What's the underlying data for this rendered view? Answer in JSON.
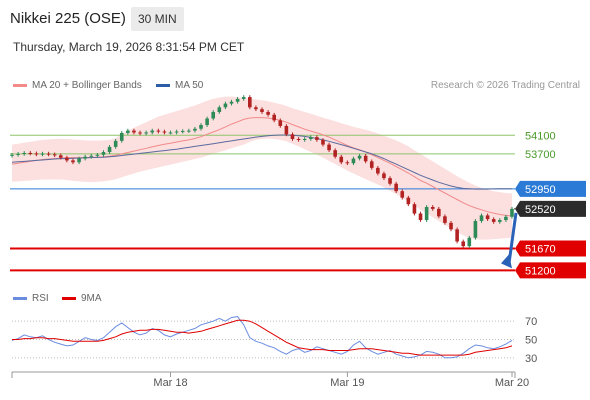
{
  "header": {
    "instrument": "Nikkei 225 (OSE)",
    "timeframe": "30 MIN",
    "timestamp": "Thursday, March 19, 2026 8:31:54 PM CET"
  },
  "legend_top": [
    {
      "label": "MA 20 + Bollinger Bands",
      "color": "#f28a8a"
    },
    {
      "label": "MA 50",
      "color": "#2c5ea8"
    }
  ],
  "legend_rsi": [
    {
      "label": "RSI",
      "color": "#6a8de0"
    },
    {
      "label": "9MA",
      "color": "#e00000"
    }
  ],
  "copyright": "Research © 2026 Trading Central",
  "colors": {
    "up": "#2e8b57",
    "down": "#b22222",
    "resistance": "#8dc56b",
    "pivot": "#2a7ad6",
    "support": "#e00000",
    "bb_fill": "#fbd9d9",
    "ma20": "#f28a8a",
    "ma50": "#5b6a9e",
    "rsi": "#6a8de0",
    "rsi_ma": "#e00000"
  },
  "chart_data": [
    {
      "type": "candlestick",
      "title": "Nikkei 225 (OSE)",
      "timeframe": "30 MIN",
      "ylim": [
        50950,
        54900
      ],
      "x_ticks": [
        {
          "label": "Mar 18",
          "index": 26
        },
        {
          "label": "Mar 19",
          "index": 55
        },
        {
          "label": "Mar 20",
          "index": 82
        }
      ],
      "levels": [
        {
          "value": 54100,
          "label": "54100",
          "kind": "resistance"
        },
        {
          "value": 53700,
          "label": "53700",
          "kind": "resistance"
        },
        {
          "value": 52950,
          "label": "52950",
          "kind": "pivot"
        },
        {
          "value": 52520,
          "label": "52520",
          "kind": "last"
        },
        {
          "value": 51670,
          "label": "51670",
          "kind": "support"
        },
        {
          "value": 51200,
          "label": "51200",
          "kind": "support"
        }
      ],
      "forecast_arrow": {
        "from_value": 52520,
        "to_value": 51200
      },
      "close": [
        53680,
        53700,
        53720,
        53710,
        53690,
        53705,
        53690,
        53670,
        53620,
        53560,
        53520,
        53600,
        53640,
        53660,
        53680,
        53740,
        53850,
        53980,
        54150,
        54200,
        54160,
        54140,
        54160,
        54200,
        54180,
        54160,
        54160,
        54180,
        54190,
        54200,
        54240,
        54320,
        54460,
        54600,
        54700,
        54780,
        54820,
        54880,
        54920,
        54700,
        54660,
        54600,
        54540,
        54420,
        54300,
        54120,
        54020,
        54000,
        54020,
        54060,
        54000,
        53900,
        53780,
        53640,
        53520,
        53500,
        53600,
        53660,
        53540,
        53400,
        53280,
        53180,
        53060,
        52900,
        52760,
        52620,
        52420,
        52280,
        52560,
        52520,
        52360,
        52220,
        52080,
        51820,
        51720,
        51900,
        52260,
        52380,
        52300,
        52240,
        52280,
        52350,
        52520
      ],
      "series": [
        {
          "name": "MA 20",
          "values": [
            53480,
            53500,
            53520,
            53540,
            53560,
            53580,
            53590,
            53600,
            53610,
            53620,
            53620,
            53620,
            53620,
            53625,
            53630,
            53640,
            53650,
            53670,
            53700,
            53730,
            53760,
            53790,
            53820,
            53850,
            53880,
            53905,
            53930,
            53955,
            53980,
            54000,
            54030,
            54070,
            54120,
            54170,
            54220,
            54280,
            54340,
            54390,
            54440,
            54470,
            54480,
            54480,
            54470,
            54450,
            54420,
            54380,
            54330,
            54280,
            54230,
            54190,
            54150,
            54110,
            54060,
            54000,
            53940,
            53880,
            53830,
            53790,
            53740,
            53680,
            53620,
            53560,
            53500,
            53430,
            53360,
            53290,
            53210,
            53130,
            53070,
            53000,
            52930,
            52860,
            52790,
            52720,
            52650,
            52590,
            52540,
            52500,
            52460,
            52430,
            52400,
            52380,
            52370
          ]
        },
        {
          "name": "MA 50",
          "values": [
            53520,
            53530,
            53540,
            53550,
            53560,
            53570,
            53580,
            53590,
            53600,
            53600,
            53605,
            53610,
            53615,
            53620,
            53625,
            53630,
            53640,
            53650,
            53665,
            53680,
            53695,
            53710,
            53725,
            53740,
            53755,
            53770,
            53785,
            53800,
            53820,
            53840,
            53860,
            53880,
            53900,
            53920,
            53940,
            53960,
            53980,
            54000,
            54020,
            54040,
            54060,
            54075,
            54090,
            54100,
            54105,
            54105,
            54100,
            54090,
            54075,
            54055,
            54030,
            54000,
            53970,
            53935,
            53900,
            53860,
            53820,
            53780,
            53740,
            53700,
            53650,
            53600,
            53540,
            53480,
            53420,
            53360,
            53300,
            53240,
            53190,
            53140,
            53090,
            53050,
            53010,
            52980,
            52960,
            52950,
            52945,
            52945,
            52945,
            52948,
            52950,
            52950,
            52950
          ]
        },
        {
          "name": "Bollinger Upper",
          "values": [
            53900,
            53920,
            53940,
            53960,
            53980,
            54000,
            54010,
            54020,
            54020,
            54020,
            54010,
            54000,
            53990,
            53985,
            53985,
            53990,
            54000,
            54040,
            54120,
            54200,
            54260,
            54320,
            54380,
            54440,
            54500,
            54540,
            54580,
            54620,
            54660,
            54700,
            54740,
            54790,
            54840,
            54880,
            54910,
            54930,
            54930,
            54920,
            54900,
            54880,
            54870,
            54850,
            54830,
            54800,
            54770,
            54730,
            54680,
            54640,
            54600,
            54560,
            54520,
            54480,
            54440,
            54400,
            54360,
            54320,
            54280,
            54250,
            54220,
            54180,
            54140,
            54090,
            54040,
            53990,
            53930,
            53860,
            53780,
            53700,
            53620,
            53540,
            53460,
            53380,
            53300,
            53220,
            53150,
            53080,
            53020,
            52970,
            52930,
            52900,
            52880,
            52860,
            52850
          ]
        },
        {
          "name": "Bollinger Lower",
          "values": [
            53100,
            53110,
            53120,
            53130,
            53140,
            53150,
            53150,
            53150,
            53150,
            53140,
            53120,
            53110,
            53100,
            53095,
            53100,
            53110,
            53130,
            53160,
            53200,
            53240,
            53280,
            53320,
            53350,
            53380,
            53410,
            53440,
            53470,
            53500,
            53530,
            53560,
            53590,
            53620,
            53660,
            53700,
            53740,
            53780,
            53820,
            53860,
            53900,
            53960,
            54000,
            54020,
            54030,
            54020,
            54000,
            53970,
            53920,
            53860,
            53800,
            53740,
            53680,
            53620,
            53550,
            53480,
            53410,
            53340,
            53280,
            53220,
            53160,
            53100,
            53040,
            52980,
            52910,
            52840,
            52760,
            52680,
            52590,
            52500,
            52420,
            52340,
            52260,
            52180,
            52100,
            52020,
            51950,
            51900,
            51870,
            51860,
            51860,
            51870,
            51880,
            51890,
            51900
          ]
        }
      ]
    },
    {
      "type": "line",
      "title": "RSI",
      "ylim": [
        20,
        80
      ],
      "y_ticks": [
        70,
        50,
        30
      ],
      "series": [
        {
          "name": "RSI",
          "values": [
            49,
            51,
            55,
            53,
            52,
            54,
            50,
            47,
            45,
            43,
            44,
            48,
            52,
            50,
            49,
            52,
            58,
            64,
            68,
            63,
            58,
            55,
            57,
            62,
            60,
            55,
            53,
            56,
            58,
            60,
            62,
            66,
            68,
            70,
            73,
            70,
            74,
            75,
            66,
            52,
            48,
            46,
            43,
            41,
            37,
            34,
            38,
            40,
            36,
            38,
            42,
            40,
            38,
            36,
            34,
            37,
            44,
            48,
            41,
            37,
            34,
            36,
            38,
            34,
            32,
            30,
            31,
            33,
            37,
            36,
            34,
            30,
            30,
            31,
            35,
            40,
            44,
            43,
            41,
            40,
            42,
            45,
            49
          ]
        },
        {
          "name": "9MA",
          "values": [
            50,
            50,
            51,
            51,
            52,
            52,
            51,
            51,
            50,
            49,
            48,
            48,
            48,
            48,
            48,
            49,
            51,
            53,
            56,
            58,
            59,
            60,
            60,
            61,
            61,
            60,
            59,
            58,
            58,
            57,
            58,
            59,
            61,
            63,
            65,
            67,
            69,
            71,
            71,
            70,
            67,
            63,
            59,
            55,
            51,
            47,
            44,
            41,
            40,
            39,
            39,
            39,
            38,
            38,
            38,
            38,
            39,
            40,
            40,
            40,
            39,
            38,
            37,
            36,
            35,
            35,
            34,
            33,
            33,
            33,
            33,
            33,
            33,
            33,
            33,
            34,
            36,
            37,
            38,
            39,
            40,
            41,
            43
          ]
        }
      ]
    }
  ]
}
